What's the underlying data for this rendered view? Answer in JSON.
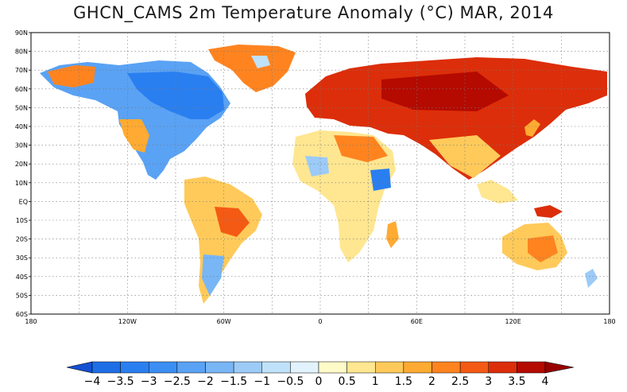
{
  "title": "GHCN_CAMS 2m Temperature Anomaly (°C) MAR, 2014",
  "map": {
    "lat_labels": [
      "90N",
      "80N",
      "70N",
      "60N",
      "50N",
      "40N",
      "30N",
      "20N",
      "10N",
      "EQ",
      "10S",
      "20S",
      "30S",
      "40S",
      "50S",
      "60S"
    ],
    "lon_labels": [
      "180",
      "120W",
      "60W",
      "0",
      "60E",
      "120E",
      "180"
    ]
  },
  "colorbar": {
    "labels": [
      "-4",
      "-3.5",
      "-3",
      "-2.5",
      "-2",
      "-1.5",
      "-1",
      "-0.5",
      "0",
      "0.5",
      "1",
      "1.5",
      "2",
      "2.5",
      "3",
      "3.5",
      "4"
    ],
    "colors": [
      "#1e6ee6",
      "#2a7ff0",
      "#3c8ff2",
      "#5aa2f4",
      "#78b6f6",
      "#9ccbf8",
      "#bfe1fa",
      "#e2f3fd",
      "#fffbc8",
      "#ffe690",
      "#ffca5a",
      "#ffaa32",
      "#ff8420",
      "#f45a14",
      "#dc2e0a",
      "#b40a00"
    ],
    "low_color": "#1450d2",
    "high_color": "#960000"
  },
  "legend_colors": {
    "cold": "#3c8ff2",
    "warm": "#dc2e0a",
    "land_neutral": "#ffe690"
  }
}
